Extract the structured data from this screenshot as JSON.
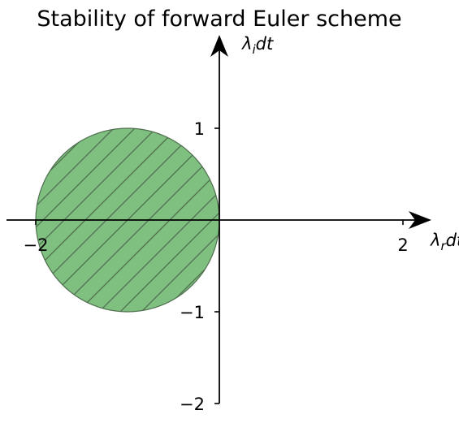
{
  "chart_data": {
    "type": "area",
    "title": "Stability of forward Euler scheme",
    "xlabel": {
      "base": "λ",
      "sub": "r",
      "rest": "dt"
    },
    "ylabel": {
      "base": "λ",
      "sub": "i",
      "rest": "dt"
    },
    "xlim": [
      -2.3,
      2.3
    ],
    "ylim": [
      -2.05,
      2.0
    ],
    "x_ticks": [
      {
        "value": -2,
        "label": "−2"
      },
      {
        "value": 2,
        "label": "2"
      }
    ],
    "y_ticks": [
      {
        "value": 1,
        "label": "1"
      },
      {
        "value": -1,
        "label": "−1"
      },
      {
        "value": -2,
        "label": "−2"
      }
    ],
    "region": {
      "shape": "circle",
      "center": [
        -1,
        0
      ],
      "radius": 1,
      "fill_color": "#7fbf7f",
      "edge_color": "#4f6f4f",
      "hatch": "/"
    },
    "grid": false,
    "legend": "none"
  }
}
